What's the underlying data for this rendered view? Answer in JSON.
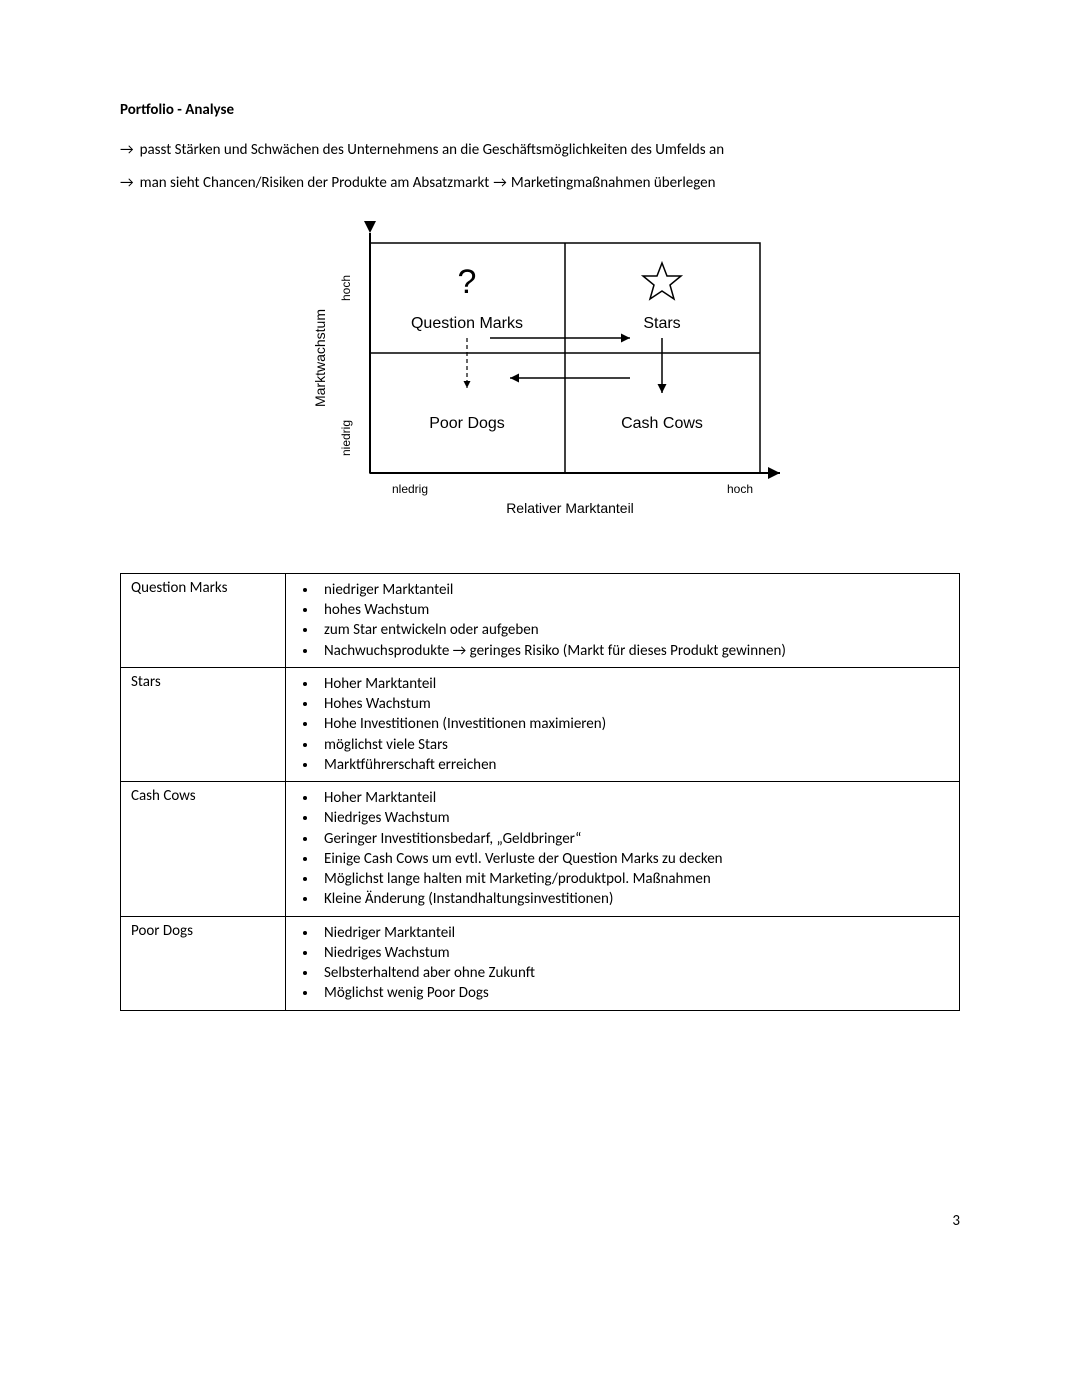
{
  "heading": "Portfolio - Analyse",
  "intro": {
    "line1": "passt Stärken und Schwächen des Unternehmens an die Geschäftsmöglichkeiten des Umfelds an",
    "line2_a": "man sieht Chancen/Risiken der Produkte am Absatzmarkt",
    "line2_b": "Marketingmaßnahmen überlegen"
  },
  "diagram": {
    "type": "bcg-matrix",
    "y_axis_label": "Marktwachstum",
    "y_low": "niedrig",
    "y_high": "hoch",
    "x_axis_label": "Relativer Marktanteil",
    "x_low": "nledrig",
    "x_high": "hoch",
    "quadrants": {
      "top_left": "Question Marks",
      "top_right": "Stars",
      "bottom_left": "Poor Dogs",
      "bottom_right": "Cash Cows"
    },
    "symbols": {
      "top_left": "?",
      "top_right": "star"
    },
    "colors": {
      "stroke": "#000000",
      "background": "#ffffff",
      "text": "#000000"
    },
    "font_sizes": {
      "axis_value": 12,
      "axis_label": 14,
      "quadrant_label": 16,
      "symbol": 28
    },
    "arrows": [
      {
        "from": "top_left",
        "to": "bottom_left",
        "style": "dashed"
      },
      {
        "from": "top_left",
        "to": "top_right",
        "style": "solid"
      },
      {
        "from": "top_right",
        "to": "bottom_right",
        "style": "solid"
      },
      {
        "from": "bottom_right",
        "to": "bottom_left",
        "style": "solid"
      }
    ]
  },
  "table": {
    "rows": [
      {
        "key": "Question Marks",
        "items": [
          "niedriger Marktanteil",
          "hohes Wachstum",
          "zum Star entwickeln oder aufgeben",
          "Nachwuchsprodukte → geringes Risiko (Markt für dieses Produkt gewinnen)"
        ]
      },
      {
        "key": "Stars",
        "items": [
          "Hoher Marktanteil",
          "Hohes Wachstum",
          "Hohe Investitionen (Investitionen maximieren)",
          "möglichst viele Stars",
          "Marktführerschaft erreichen"
        ]
      },
      {
        "key": "Cash Cows",
        "items": [
          "Hoher Marktanteil",
          "Niedriges Wachstum",
          "Geringer Investitionsbedarf, „Geldbringer“",
          "Einige Cash Cows um evtl. Verluste der Question Marks zu decken",
          "Möglichst lange halten mit Marketing/produktpol. Maßnahmen",
          "Kleine Änderung (Instandhaltungsinvestitionen)"
        ]
      },
      {
        "key": "Poor Dogs",
        "items": [
          "Niedriger Marktanteil",
          "Niedriges Wachstum",
          "Selbsterhaltend aber ohne Zukunft",
          "Möglichst wenig Poor Dogs"
        ]
      }
    ]
  },
  "page_number": "3"
}
